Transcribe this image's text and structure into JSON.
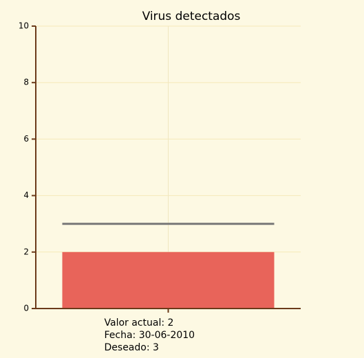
{
  "chart_data": {
    "type": "bar",
    "title": "Virus detectados",
    "categories": [
      [
        "Valor actual: 2",
        "Fecha: 30-06-2010",
        "Deseado: 3"
      ]
    ],
    "values": [
      2
    ],
    "color": "#e8645a",
    "target": 3,
    "target_color": "#777777",
    "ylim": [
      0,
      10
    ],
    "yticks": [
      0,
      2,
      4,
      6,
      8,
      10
    ],
    "grid": true
  }
}
